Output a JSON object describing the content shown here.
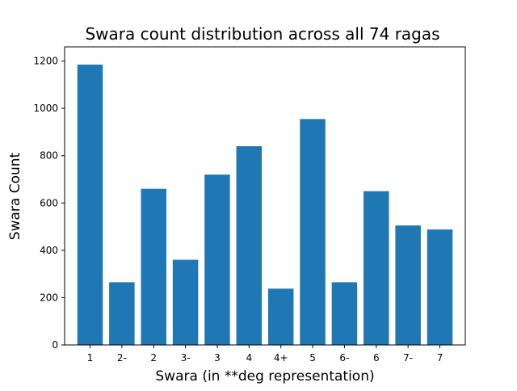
{
  "chart_data": {
    "type": "bar",
    "title": "Swara count distribution across all 74 ragas",
    "xlabel": "Swara (in **deg representation)",
    "ylabel": "Swara Count",
    "categories": [
      "1",
      "2-",
      "2",
      "3-",
      "3",
      "4",
      "4+",
      "5",
      "6-",
      "6",
      "7-",
      "7"
    ],
    "values": [
      1185,
      265,
      660,
      360,
      720,
      840,
      238,
      955,
      265,
      650,
      505,
      488
    ],
    "ylim": [
      0,
      1260
    ],
    "yticks": [
      0,
      200,
      400,
      600,
      800,
      1000,
      1200
    ],
    "grid": false,
    "bar_color": "#1f77b4"
  }
}
